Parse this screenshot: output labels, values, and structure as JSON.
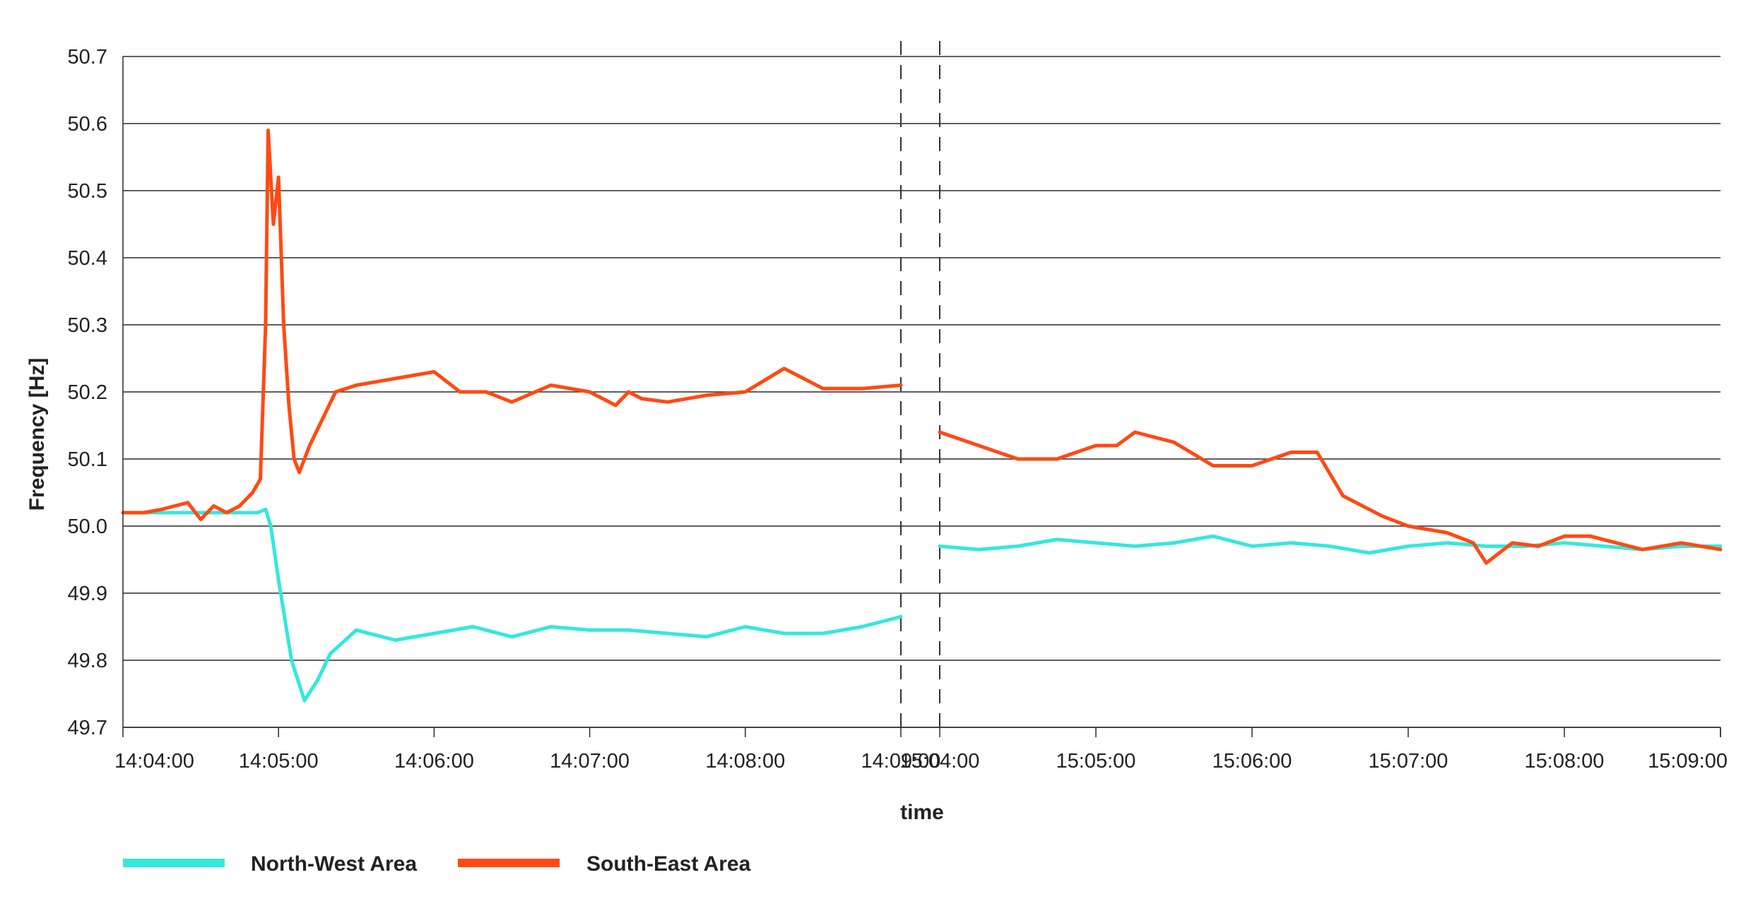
{
  "chart_data": {
    "type": "line",
    "title": "",
    "xlabel": "time",
    "ylabel": "Frequency [Hz]",
    "ylim": [
      49.7,
      50.7
    ],
    "yticks": [
      "50.7",
      "50.6",
      "50.5",
      "50.4",
      "50.3",
      "50.2",
      "50.1",
      "50.0",
      "49.9",
      "49.8",
      "49.7"
    ],
    "grid": "horizontal",
    "legend_position": "bottom-left",
    "panels": [
      {
        "xlim": [
          "14:04:00",
          "14:09:00"
        ],
        "xticks": [
          "14:04:00",
          "14:05:00",
          "14:06:00",
          "14:07:00",
          "14:08:00",
          "14:09:00"
        ]
      },
      {
        "xlim": [
          "15:04:00",
          "15:09:00"
        ],
        "xticks": [
          "15:04:00",
          "15:05:00",
          "15:06:00",
          "15:07:00",
          "15:08:00",
          "15:09:00"
        ]
      }
    ],
    "series": [
      {
        "name": "North-West Area",
        "color": "#34e8dc",
        "segments": [
          {
            "x": [
              "14:04:00",
              "14:04:15",
              "14:04:30",
              "14:04:45",
              "14:04:52",
              "14:04:55",
              "14:04:57",
              "14:05:00",
              "14:05:05",
              "14:05:10",
              "14:05:15",
              "14:05:20",
              "14:05:30",
              "14:05:45",
              "14:06:00",
              "14:06:15",
              "14:06:30",
              "14:06:45",
              "14:07:00",
              "14:07:15",
              "14:07:30",
              "14:07:45",
              "14:08:00",
              "14:08:15",
              "14:08:30",
              "14:08:45",
              "14:09:00"
            ],
            "y": [
              50.02,
              50.02,
              50.02,
              50.02,
              50.02,
              50.025,
              50.0,
              49.92,
              49.8,
              49.74,
              49.77,
              49.81,
              49.845,
              49.83,
              49.84,
              49.85,
              49.835,
              49.85,
              49.845,
              49.845,
              49.84,
              49.835,
              49.85,
              49.84,
              49.84,
              49.85,
              49.865
            ]
          },
          {
            "x": [
              "15:04:00",
              "15:04:15",
              "15:04:30",
              "15:04:45",
              "15:05:00",
              "15:05:15",
              "15:05:30",
              "15:05:45",
              "15:06:00",
              "15:06:15",
              "15:06:30",
              "15:06:45",
              "15:07:00",
              "15:07:15",
              "15:07:30",
              "15:07:45",
              "15:08:00",
              "15:08:15",
              "15:08:30",
              "15:08:45",
              "15:09:00"
            ],
            "y": [
              49.97,
              49.965,
              49.97,
              49.98,
              49.975,
              49.97,
              49.975,
              49.985,
              49.97,
              49.975,
              49.97,
              49.96,
              49.97,
              49.975,
              49.97,
              49.97,
              49.975,
              49.97,
              49.965,
              49.97,
              49.97
            ]
          }
        ]
      },
      {
        "name": "South-East Area",
        "color": "#ff4a12",
        "segments": [
          {
            "x": [
              "14:04:00",
              "14:04:08",
              "14:04:15",
              "14:04:20",
              "14:04:25",
              "14:04:30",
              "14:04:35",
              "14:04:40",
              "14:04:45",
              "14:04:50",
              "14:04:53",
              "14:04:55",
              "14:04:56",
              "14:04:58",
              "14:05:00",
              "14:05:02",
              "14:05:04",
              "14:05:06",
              "14:05:08",
              "14:05:12",
              "14:05:17",
              "14:05:22",
              "14:05:30",
              "14:05:45",
              "14:06:00",
              "14:06:10",
              "14:06:20",
              "14:06:30",
              "14:06:45",
              "14:07:00",
              "14:07:10",
              "14:07:15",
              "14:07:20",
              "14:07:30",
              "14:07:45",
              "14:08:00",
              "14:08:15",
              "14:08:30",
              "14:08:45",
              "14:09:00"
            ],
            "y": [
              50.02,
              50.02,
              50.025,
              50.03,
              50.035,
              50.01,
              50.03,
              50.02,
              50.03,
              50.05,
              50.07,
              50.3,
              50.59,
              50.45,
              50.52,
              50.3,
              50.18,
              50.1,
              50.08,
              50.12,
              50.16,
              50.2,
              50.21,
              50.22,
              50.23,
              50.2,
              50.2,
              50.185,
              50.21,
              50.2,
              50.18,
              50.2,
              50.19,
              50.185,
              50.195,
              50.2,
              50.235,
              50.205,
              50.205,
              50.21
            ]
          },
          {
            "x": [
              "15:04:00",
              "15:04:15",
              "15:04:30",
              "15:04:45",
              "15:05:00",
              "15:05:08",
              "15:05:15",
              "15:05:30",
              "15:05:45",
              "15:06:00",
              "15:06:15",
              "15:06:25",
              "15:06:35",
              "15:06:50",
              "15:07:00",
              "15:07:15",
              "15:07:25",
              "15:07:30",
              "15:07:40",
              "15:07:50",
              "15:08:00",
              "15:08:10",
              "15:08:20",
              "15:08:30",
              "15:08:45",
              "15:09:00"
            ],
            "y": [
              50.14,
              50.12,
              50.1,
              50.1,
              50.12,
              50.12,
              50.14,
              50.125,
              50.09,
              50.09,
              50.11,
              50.11,
              50.045,
              50.015,
              50.0,
              49.99,
              49.975,
              49.945,
              49.975,
              49.97,
              49.985,
              49.985,
              49.975,
              49.965,
              49.975,
              49.965
            ]
          }
        ]
      }
    ]
  }
}
